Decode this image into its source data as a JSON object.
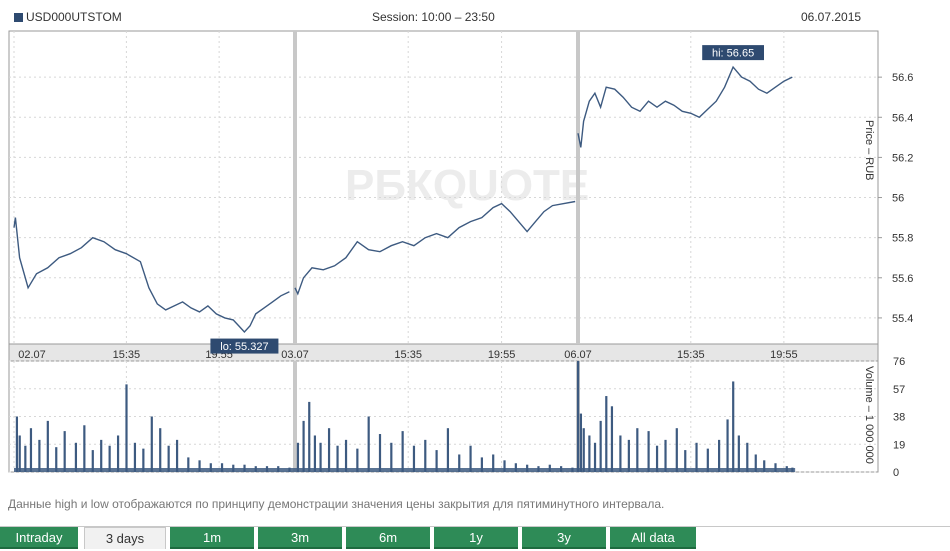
{
  "header": {
    "symbol": "USD000UTSTOM",
    "session": "Session: 10:00 – 23:50",
    "date": "06.07.2015"
  },
  "watermark": "РБКQUOTE",
  "note": "Данные high и low отображаются по принципу демонстрации значения цены закрытия для пятиминутного интервала.",
  "tabs": [
    {
      "label": "Intraday",
      "active": false
    },
    {
      "label": "3 days",
      "active": true
    },
    {
      "label": "1m",
      "active": false
    },
    {
      "label": "3m",
      "active": false
    },
    {
      "label": "6m",
      "active": false
    },
    {
      "label": "1y",
      "active": false
    },
    {
      "label": "3y",
      "active": false
    },
    {
      "label": "All data",
      "active": false
    }
  ],
  "colors": {
    "line": "#3d5a80",
    "grid": "#d7d7d7",
    "separator": "#c8c8c8",
    "label_bg": "#2e4a70",
    "tab": "#2e8b57"
  },
  "chart_data": {
    "type": "line",
    "price_axis": {
      "label": "Price – RUB",
      "ticks": [
        "55.4",
        "55.6",
        "55.8",
        "56",
        "56.2",
        "56.4",
        "56.6"
      ],
      "ylim": [
        55.27,
        56.83
      ]
    },
    "volume_axis": {
      "label": "Volume – 1 000 000",
      "ticks": [
        "0",
        "19",
        "38",
        "57",
        "76"
      ],
      "ylim": [
        0,
        76
      ]
    },
    "x_ticks": [
      {
        "label": "02.07",
        "pos": 0.0
      },
      {
        "label": "15:35",
        "pos": 0.4
      },
      {
        "label": "19:55",
        "pos": 0.73
      },
      {
        "label": "03.07",
        "pos": 1.0
      },
      {
        "label": "15:35",
        "pos": 1.4
      },
      {
        "label": "19:55",
        "pos": 1.73
      },
      {
        "label": "06.07",
        "pos": 2.0
      },
      {
        "label": "15:35",
        "pos": 2.4
      },
      {
        "label": "19:55",
        "pos": 2.73
      }
    ],
    "sessions": [
      "02.07",
      "03.07",
      "06.07"
    ],
    "annotations": [
      {
        "text": "lo: 55.327",
        "value": 55.327,
        "x": 0.82
      },
      {
        "text": "hi: 56.65",
        "value": 56.65,
        "x": 2.55
      }
    ],
    "price_series": [
      [
        0.0,
        55.85
      ],
      [
        0.005,
        55.9
      ],
      [
        0.02,
        55.7
      ],
      [
        0.05,
        55.55
      ],
      [
        0.08,
        55.62
      ],
      [
        0.12,
        55.65
      ],
      [
        0.16,
        55.7
      ],
      [
        0.2,
        55.72
      ],
      [
        0.24,
        55.75
      ],
      [
        0.28,
        55.8
      ],
      [
        0.32,
        55.78
      ],
      [
        0.36,
        55.74
      ],
      [
        0.4,
        55.72
      ],
      [
        0.45,
        55.68
      ],
      [
        0.48,
        55.55
      ],
      [
        0.51,
        55.47
      ],
      [
        0.54,
        55.44
      ],
      [
        0.57,
        55.46
      ],
      [
        0.6,
        55.48
      ],
      [
        0.63,
        55.45
      ],
      [
        0.66,
        55.43
      ],
      [
        0.69,
        55.46
      ],
      [
        0.72,
        55.42
      ],
      [
        0.75,
        55.4
      ],
      [
        0.78,
        55.39
      ],
      [
        0.8,
        55.36
      ],
      [
        0.82,
        55.33
      ],
      [
        0.84,
        55.36
      ],
      [
        0.86,
        55.42
      ],
      [
        0.89,
        55.45
      ],
      [
        0.92,
        55.48
      ],
      [
        0.95,
        55.51
      ],
      [
        0.98,
        55.53
      ],
      [
        1.0,
        55.55
      ],
      [
        1.01,
        55.52
      ],
      [
        1.03,
        55.6
      ],
      [
        1.06,
        55.65
      ],
      [
        1.1,
        55.64
      ],
      [
        1.14,
        55.66
      ],
      [
        1.18,
        55.7
      ],
      [
        1.22,
        55.78
      ],
      [
        1.26,
        55.74
      ],
      [
        1.3,
        55.73
      ],
      [
        1.34,
        55.76
      ],
      [
        1.38,
        55.78
      ],
      [
        1.42,
        55.76
      ],
      [
        1.46,
        55.8
      ],
      [
        1.5,
        55.82
      ],
      [
        1.54,
        55.8
      ],
      [
        1.58,
        55.85
      ],
      [
        1.62,
        55.88
      ],
      [
        1.66,
        55.9
      ],
      [
        1.7,
        55.95
      ],
      [
        1.73,
        55.97
      ],
      [
        1.76,
        55.93
      ],
      [
        1.79,
        55.88
      ],
      [
        1.82,
        55.83
      ],
      [
        1.85,
        55.88
      ],
      [
        1.88,
        55.93
      ],
      [
        1.91,
        55.96
      ],
      [
        1.95,
        55.97
      ],
      [
        1.99,
        55.98
      ],
      [
        2.0,
        56.32
      ],
      [
        2.01,
        56.25
      ],
      [
        2.02,
        56.38
      ],
      [
        2.04,
        56.48
      ],
      [
        2.06,
        56.52
      ],
      [
        2.08,
        56.45
      ],
      [
        2.1,
        56.55
      ],
      [
        2.13,
        56.54
      ],
      [
        2.16,
        56.5
      ],
      [
        2.19,
        56.45
      ],
      [
        2.22,
        56.43
      ],
      [
        2.25,
        56.48
      ],
      [
        2.28,
        56.45
      ],
      [
        2.31,
        56.48
      ],
      [
        2.34,
        56.46
      ],
      [
        2.37,
        56.43
      ],
      [
        2.4,
        56.42
      ],
      [
        2.43,
        56.4
      ],
      [
        2.46,
        56.44
      ],
      [
        2.49,
        56.48
      ],
      [
        2.52,
        56.55
      ],
      [
        2.55,
        56.65
      ],
      [
        2.58,
        56.6
      ],
      [
        2.61,
        56.58
      ],
      [
        2.64,
        56.54
      ],
      [
        2.67,
        56.52
      ],
      [
        2.7,
        56.55
      ],
      [
        2.73,
        56.58
      ],
      [
        2.76,
        56.6
      ]
    ],
    "volume_series": [
      [
        0.01,
        38
      ],
      [
        0.02,
        25
      ],
      [
        0.04,
        18
      ],
      [
        0.06,
        30
      ],
      [
        0.09,
        22
      ],
      [
        0.12,
        35
      ],
      [
        0.15,
        17
      ],
      [
        0.18,
        28
      ],
      [
        0.22,
        20
      ],
      [
        0.25,
        32
      ],
      [
        0.28,
        15
      ],
      [
        0.31,
        22
      ],
      [
        0.34,
        18
      ],
      [
        0.37,
        25
      ],
      [
        0.4,
        60
      ],
      [
        0.43,
        20
      ],
      [
        0.46,
        16
      ],
      [
        0.49,
        38
      ],
      [
        0.52,
        30
      ],
      [
        0.55,
        18
      ],
      [
        0.58,
        22
      ],
      [
        0.62,
        10
      ],
      [
        0.66,
        8
      ],
      [
        0.7,
        6
      ],
      [
        0.74,
        6
      ],
      [
        0.78,
        5
      ],
      [
        0.82,
        5
      ],
      [
        0.86,
        4
      ],
      [
        0.9,
        4
      ],
      [
        0.94,
        4
      ],
      [
        0.98,
        3
      ],
      [
        1.01,
        20
      ],
      [
        1.03,
        35
      ],
      [
        1.05,
        48
      ],
      [
        1.07,
        25
      ],
      [
        1.09,
        20
      ],
      [
        1.12,
        30
      ],
      [
        1.15,
        18
      ],
      [
        1.18,
        22
      ],
      [
        1.22,
        16
      ],
      [
        1.26,
        38
      ],
      [
        1.3,
        26
      ],
      [
        1.34,
        20
      ],
      [
        1.38,
        28
      ],
      [
        1.42,
        18
      ],
      [
        1.46,
        22
      ],
      [
        1.5,
        15
      ],
      [
        1.54,
        30
      ],
      [
        1.58,
        12
      ],
      [
        1.62,
        18
      ],
      [
        1.66,
        10
      ],
      [
        1.7,
        12
      ],
      [
        1.74,
        8
      ],
      [
        1.78,
        6
      ],
      [
        1.82,
        5
      ],
      [
        1.86,
        4
      ],
      [
        1.9,
        5
      ],
      [
        1.94,
        4
      ],
      [
        1.98,
        3
      ],
      [
        2.0,
        76
      ],
      [
        2.01,
        40
      ],
      [
        2.02,
        30
      ],
      [
        2.04,
        25
      ],
      [
        2.06,
        20
      ],
      [
        2.08,
        35
      ],
      [
        2.1,
        52
      ],
      [
        2.12,
        45
      ],
      [
        2.15,
        25
      ],
      [
        2.18,
        22
      ],
      [
        2.21,
        30
      ],
      [
        2.25,
        28
      ],
      [
        2.28,
        18
      ],
      [
        2.31,
        22
      ],
      [
        2.35,
        30
      ],
      [
        2.38,
        15
      ],
      [
        2.42,
        20
      ],
      [
        2.46,
        16
      ],
      [
        2.5,
        22
      ],
      [
        2.53,
        36
      ],
      [
        2.55,
        62
      ],
      [
        2.57,
        25
      ],
      [
        2.6,
        20
      ],
      [
        2.63,
        12
      ],
      [
        2.66,
        8
      ],
      [
        2.7,
        6
      ],
      [
        2.74,
        4
      ],
      [
        2.76,
        3
      ]
    ]
  }
}
